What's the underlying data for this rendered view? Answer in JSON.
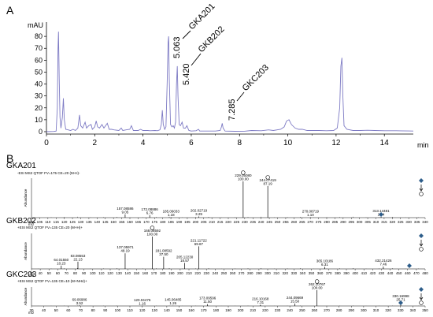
{
  "panel_a": {
    "letter": "A",
    "y_unit": "mAU",
    "x_unit": "min",
    "y_ticks": [
      "0",
      "10",
      "20",
      "30",
      "40",
      "50",
      "60",
      "70",
      "80"
    ],
    "x_ticks": [
      "0",
      "2",
      "4",
      "6",
      "8",
      "10",
      "12",
      "14"
    ],
    "peak_labels": [
      {
        "rt": "5.063",
        "compound": "GKA201"
      },
      {
        "rt": "5.420",
        "compound": "GKB202"
      },
      {
        "rt": "7.285",
        "compound": "GKC203"
      }
    ]
  },
  "panel_b": {
    "letter": "B",
    "x_unit": "m/z",
    "y_label": "Abundance",
    "spectra": [
      {
        "name": "GKA201",
        "header": "-ESI MS2 QTOF FV=175  CE=20 (M-H)-",
        "xmin": 100,
        "xmax": 340,
        "ticks": [
          "100",
          "105",
          "110",
          "115",
          "120",
          "125",
          "130",
          "135",
          "140",
          "145",
          "150",
          "155",
          "160",
          "165",
          "170",
          "175",
          "180",
          "185",
          "190",
          "195",
          "200",
          "205",
          "210",
          "215",
          "220",
          "225",
          "230",
          "235",
          "240",
          "245",
          "250",
          "255",
          "260",
          "265",
          "270",
          "275",
          "280",
          "285",
          "290",
          "295",
          "300",
          "305",
          "310",
          "315",
          "320",
          "325",
          "330",
          "335",
          "340"
        ],
        "peaks": [
          {
            "mz": 157.08586,
            "rel": 9.05,
            "mz_text": "157.08586",
            "rel_text": "9.05"
          },
          {
            "mz": 172.08886,
            "rel": 6.76,
            "mz_text": "172.08886",
            "rel_text": "6.76"
          },
          {
            "mz": 185.06033,
            "rel": 1.18,
            "mz_text": "185.06033",
            "rel_text": "1.18"
          },
          {
            "mz": 202.02719,
            "rel": 3.29,
            "mz_text": "202.02719",
            "rel_text": "3.29"
          },
          {
            "mz": 229.0508,
            "rel": 100.0,
            "mz_text": "229.05080",
            "rel_text": "100.00"
          },
          {
            "mz": 244.07419,
            "rel": 87.19,
            "mz_text": "244.07419",
            "rel_text": "87.19"
          },
          {
            "mz": 270.08719,
            "rel": 1.1,
            "mz_text": "270.08719",
            "rel_text": "1.10"
          },
          {
            "mz": 313.14481,
            "rel": 2.04,
            "mz_text": "313.14481",
            "rel_text": "2.04"
          }
        ],
        "precursor_mz": 313.14481
      },
      {
        "name": "GKB202",
        "header": "+ESI MS2 QTOF FV=135  CE=20 (M+H)+",
        "xmin": 30,
        "xmax": 480,
        "ticks": [
          "30",
          "40",
          "50",
          "60",
          "70",
          "80",
          "90",
          "100",
          "110",
          "120",
          "130",
          "140",
          "150",
          "160",
          "170",
          "180",
          "190",
          "200",
          "210",
          "220",
          "230",
          "240",
          "250",
          "260",
          "270",
          "280",
          "290",
          "300",
          "310",
          "320",
          "330",
          "340",
          "350",
          "360",
          "370",
          "380",
          "390",
          "400",
          "410",
          "420",
          "430",
          "440",
          "450",
          "460",
          "470",
          "480"
        ],
        "peaks": [
          {
            "mz": 64.0155,
            "rel": 10.23,
            "mz_text": "64.01550",
            "rel_text": "10.23"
          },
          {
            "mz": 83.08553,
            "rel": 22.13,
            "mz_text": "83.08553",
            "rel_text": "22.13"
          },
          {
            "mz": 137.05971,
            "rel": 48.19,
            "mz_text": "137.05971",
            "rel_text": "48.19"
          },
          {
            "mz": 168.08592,
            "rel": 100.0,
            "mz_text": "168.08592",
            "rel_text": "100.00"
          },
          {
            "mz": 181.08592,
            "rel": 37.5,
            "mz_text": "181.08592",
            "rel_text": "37.50"
          },
          {
            "mz": 205.1223,
            "rel": 18.57,
            "mz_text": "205.12230",
            "rel_text": "18.57"
          },
          {
            "mz": 221.11722,
            "rel": 69.87,
            "mz_text": "221.11722",
            "rel_text": "69.87"
          },
          {
            "mz": 365.10186,
            "rel": 6.31,
            "mz_text": "365.10186",
            "rel_text": "6.31"
          },
          {
            "mz": 432.21426,
            "rel": 7.46,
            "mz_text": "432.21426",
            "rel_text": "7.46"
          }
        ],
        "precursor_mz": 462.0
      },
      {
        "name": "GKC203",
        "header": "+ESI MS2 QTOF FV=135  CE=10 (M+NH4)+",
        "xmin": 30,
        "xmax": 350,
        "ticks": [
          "30",
          "40",
          "50",
          "60",
          "70",
          "80",
          "90",
          "100",
          "110",
          "120",
          "130",
          "140",
          "150",
          "160",
          "170",
          "180",
          "190",
          "200",
          "210",
          "220",
          "230",
          "240",
          "250",
          "260",
          "270",
          "280",
          "290",
          "300",
          "310",
          "320",
          "330",
          "340",
          "350"
        ],
        "peaks": [
          {
            "mz": 69.06986,
            "rel": 3.52,
            "mz_text": "69.06986",
            "rel_text": "3.52"
          },
          {
            "mz": 120.04476,
            "rel": 1.16,
            "mz_text": "120.04476",
            "rel_text": "1.16"
          },
          {
            "mz": 145.06485,
            "rel": 1.26,
            "mz_text": "145.06485",
            "rel_text": "1.26"
          },
          {
            "mz": 173.09596,
            "rel": 11.5,
            "mz_text": "173.09596",
            "rel_text": "11.50"
          },
          {
            "mz": 216.10168,
            "rel": 7.31,
            "mz_text": "216.10168",
            "rel_text": "7.31"
          },
          {
            "mz": 244.09669,
            "rel": 15.5,
            "mz_text": "244.09669",
            "rel_text": "15.50"
          },
          {
            "mz": 262.10767,
            "rel": 100.0,
            "mz_text": "262.10767",
            "rel_text": "100.00"
          },
          {
            "mz": 330.16998,
            "rel": 25.71,
            "mz_text": "330.16998",
            "rel_text": "25.71"
          }
        ],
        "precursor_mz": 330.16998
      }
    ]
  },
  "chart_data": [
    {
      "type": "line",
      "title": "",
      "xlabel": "min",
      "ylabel": "mAU",
      "xlim": [
        0,
        15.2
      ],
      "ylim": [
        -2,
        92
      ],
      "grid": false,
      "series": [
        {
          "color": "#7d7ac4",
          "points": [
            [
              0,
              0
            ],
            [
              0.3,
              0.2
            ],
            [
              0.4,
              0.5
            ],
            [
              0.45,
              20
            ],
            [
              0.48,
              70
            ],
            [
              0.5,
              84
            ],
            [
              0.53,
              45
            ],
            [
              0.56,
              12
            ],
            [
              0.6,
              3
            ],
            [
              0.66,
              12
            ],
            [
              0.7,
              28
            ],
            [
              0.74,
              10
            ],
            [
              0.8,
              2
            ],
            [
              0.9,
              1.5
            ],
            [
              1.0,
              1
            ],
            [
              1.1,
              2
            ],
            [
              1.2,
              1
            ],
            [
              1.3,
              3
            ],
            [
              1.37,
              14
            ],
            [
              1.42,
              5
            ],
            [
              1.5,
              3
            ],
            [
              1.6,
              8
            ],
            [
              1.66,
              3
            ],
            [
              1.75,
              5
            ],
            [
              1.85,
              6
            ],
            [
              1.9,
              2
            ],
            [
              2.0,
              4
            ],
            [
              2.06,
              9
            ],
            [
              2.12,
              4
            ],
            [
              2.2,
              3
            ],
            [
              2.3,
              6
            ],
            [
              2.38,
              3
            ],
            [
              2.45,
              5
            ],
            [
              2.52,
              7
            ],
            [
              2.6,
              2
            ],
            [
              2.7,
              2
            ],
            [
              2.8,
              1.5
            ],
            [
              3.0,
              1
            ],
            [
              3.1,
              3
            ],
            [
              3.16,
              1
            ],
            [
              3.3,
              1.5
            ],
            [
              3.45,
              2
            ],
            [
              3.52,
              5
            ],
            [
              3.6,
              1
            ],
            [
              3.8,
              1
            ],
            [
              3.9,
              2
            ],
            [
              4.0,
              1
            ],
            [
              4.2,
              1
            ],
            [
              4.3,
              0.8
            ],
            [
              4.5,
              1
            ],
            [
              4.6,
              0.8
            ],
            [
              4.7,
              1.5
            ],
            [
              4.76,
              6
            ],
            [
              4.8,
              18
            ],
            [
              4.84,
              6
            ],
            [
              4.9,
              2
            ],
            [
              4.95,
              4
            ],
            [
              5.0,
              40
            ],
            [
              5.04,
              75
            ],
            [
              5.063,
              80
            ],
            [
              5.09,
              45
            ],
            [
              5.14,
              6
            ],
            [
              5.2,
              4
            ],
            [
              5.25,
              5
            ],
            [
              5.3,
              3
            ],
            [
              5.35,
              8
            ],
            [
              5.39,
              40
            ],
            [
              5.42,
              55
            ],
            [
              5.45,
              30
            ],
            [
              5.5,
              6
            ],
            [
              5.55,
              5
            ],
            [
              5.62,
              8
            ],
            [
              5.68,
              3
            ],
            [
              5.76,
              3
            ],
            [
              5.82,
              5
            ],
            [
              5.9,
              1
            ],
            [
              6.0,
              0.5
            ],
            [
              6.2,
              0.8
            ],
            [
              6.3,
              2
            ],
            [
              6.35,
              0.5
            ],
            [
              6.6,
              0.5
            ],
            [
              7.0,
              0.5
            ],
            [
              7.2,
              1
            ],
            [
              7.25,
              4
            ],
            [
              7.285,
              7
            ],
            [
              7.32,
              3
            ],
            [
              7.4,
              0.5
            ],
            [
              7.8,
              0.3
            ],
            [
              8.2,
              0.4
            ],
            [
              8.5,
              1
            ],
            [
              8.9,
              0.8
            ],
            [
              9.2,
              1.5
            ],
            [
              9.4,
              1
            ],
            [
              9.7,
              2
            ],
            [
              9.85,
              4
            ],
            [
              9.95,
              9
            ],
            [
              10.05,
              10
            ],
            [
              10.15,
              6
            ],
            [
              10.3,
              3
            ],
            [
              10.45,
              2
            ],
            [
              10.6,
              2
            ],
            [
              10.8,
              1
            ],
            [
              11.0,
              1
            ],
            [
              11.3,
              1
            ],
            [
              11.6,
              0.8
            ],
            [
              11.9,
              1
            ],
            [
              12.05,
              3
            ],
            [
              12.15,
              20
            ],
            [
              12.2,
              55
            ],
            [
              12.24,
              62
            ],
            [
              12.28,
              30
            ],
            [
              12.33,
              5
            ],
            [
              12.45,
              2
            ],
            [
              12.7,
              1
            ],
            [
              13.0,
              1
            ],
            [
              13.3,
              1.2
            ],
            [
              13.6,
              1
            ],
            [
              14.0,
              0.8
            ],
            [
              14.5,
              0.8
            ],
            [
              15.0,
              0.6
            ],
            [
              15.2,
              0.5
            ]
          ]
        }
      ]
    },
    {
      "type": "bar",
      "title": "GKA201",
      "xlabel": "m/z",
      "ylabel": "Abundance",
      "xlim": [
        100,
        340
      ],
      "x": [
        157.08586,
        172.08886,
        185.06033,
        202.02719,
        229.0508,
        244.07419,
        270.08719,
        313.14481
      ],
      "values": [
        9.05,
        6.76,
        1.18,
        3.29,
        100.0,
        87.19,
        1.1,
        2.04
      ]
    },
    {
      "type": "bar",
      "title": "GKB202",
      "xlabel": "m/z",
      "ylabel": "Abundance",
      "xlim": [
        30,
        480
      ],
      "x": [
        64.0155,
        83.08553,
        137.05971,
        168.08592,
        181.08592,
        205.1223,
        221.11722,
        365.10186,
        432.21426
      ],
      "values": [
        10.23,
        22.13,
        48.19,
        100.0,
        37.5,
        18.57,
        69.87,
        6.31,
        7.46
      ]
    },
    {
      "type": "bar",
      "title": "GKC203",
      "xlabel": "m/z",
      "ylabel": "Abundance",
      "xlim": [
        30,
        350
      ],
      "x": [
        69.06986,
        120.04476,
        145.06485,
        173.09596,
        216.10168,
        244.09669,
        262.10767,
        330.16998
      ],
      "values": [
        3.52,
        1.16,
        1.26,
        11.5,
        7.31,
        15.5,
        100.0,
        25.71
      ]
    }
  ]
}
